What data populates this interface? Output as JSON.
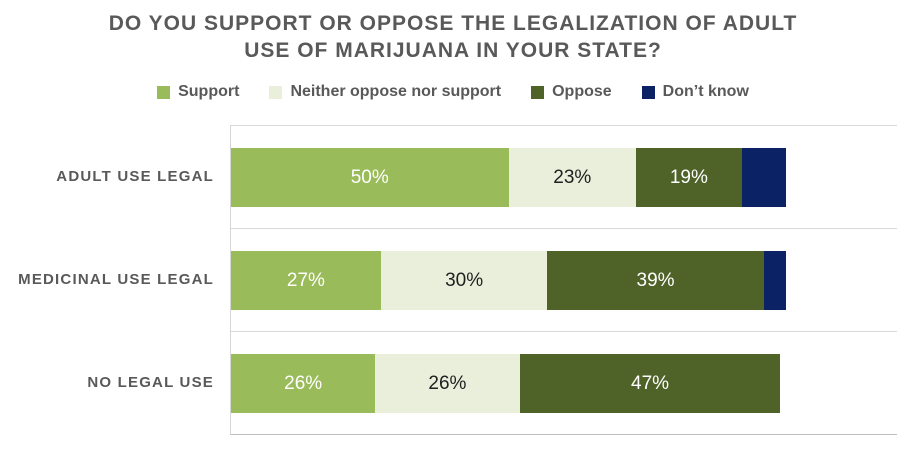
{
  "title": "DO YOU SUPPORT OR OPPOSE THE LEGALIZATION OF ADULT\nUSE OF MARIJUANA IN YOUR STATE?",
  "colors": {
    "title_text": "#595959",
    "category_text": "#595959",
    "legend_text": "#595959",
    "gridline": "#d9d9d9",
    "support": "#9abb59",
    "neither": "#eaefdc",
    "oppose": "#4f6228",
    "dont_know": "#0b2265",
    "label_on_dark": "#ffffff",
    "label_on_light": "#1f1f1f"
  },
  "chart_data": {
    "type": "bar",
    "orientation": "horizontal",
    "stacked": true,
    "title": "DO YOU SUPPORT OR OPPOSE THE LEGALIZATION OF ADULT USE OF MARIJUANA IN YOUR STATE?",
    "categories": [
      "ADULT USE LEGAL",
      "MEDICINAL USE LEGAL",
      "NO LEGAL USE"
    ],
    "series": [
      {
        "name": "Support",
        "color": "#9abb59",
        "label_color": "#ffffff",
        "labels_shown": true,
        "values": [
          50,
          27,
          26
        ]
      },
      {
        "name": "Neither oppose nor support",
        "color": "#eaefdc",
        "label_color": "#1f1f1f",
        "labels_shown": true,
        "values": [
          23,
          30,
          26
        ]
      },
      {
        "name": "Oppose",
        "color": "#4f6228",
        "label_color": "#ffffff",
        "labels_shown": true,
        "values": [
          19,
          39,
          47
        ]
      },
      {
        "name": "Don’t know",
        "color": "#0b2265",
        "label_color": "#ffffff",
        "labels_shown": false,
        "values": [
          8,
          4,
          0
        ]
      }
    ],
    "value_suffix": "%",
    "xlabel": "",
    "ylabel": "",
    "xlim": [
      0,
      120
    ],
    "grid": "horizontal-row-separators",
    "legend_position": "top"
  }
}
